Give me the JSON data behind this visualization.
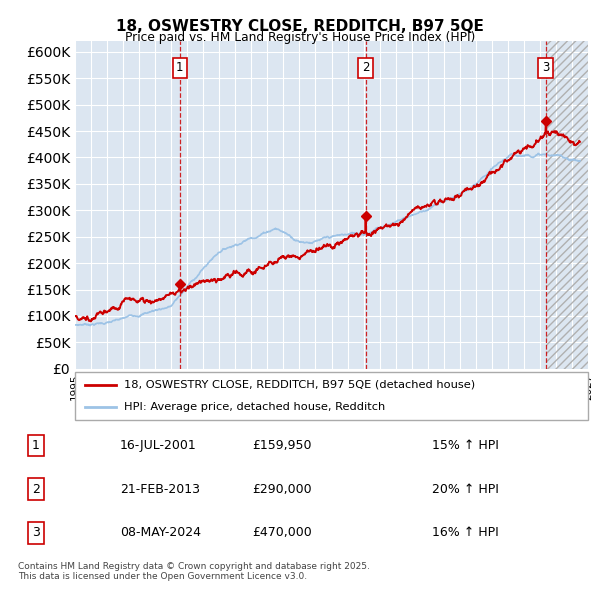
{
  "title": "18, OSWESTRY CLOSE, REDDITCH, B97 5QE",
  "subtitle": "Price paid vs. HM Land Registry's House Price Index (HPI)",
  "ylim": [
    0,
    620000
  ],
  "yticks": [
    0,
    50000,
    100000,
    150000,
    200000,
    250000,
    300000,
    350000,
    400000,
    450000,
    500000,
    550000,
    600000
  ],
  "xlim_start": 1995.0,
  "xlim_end": 2027.0,
  "background_color": "#ffffff",
  "plot_bg_color": "#dce6f1",
  "grid_color": "#ffffff",
  "red_line_color": "#cc0000",
  "blue_line_color": "#9dc3e6",
  "sale_dates": [
    2001.54,
    2013.13,
    2024.36
  ],
  "sale_prices": [
    159950,
    290000,
    470000
  ],
  "sale_labels": [
    "1",
    "2",
    "3"
  ],
  "legend_items": [
    {
      "label": "18, OSWESTRY CLOSE, REDDITCH, B97 5QE (detached house)",
      "color": "#cc0000"
    },
    {
      "label": "HPI: Average price, detached house, Redditch",
      "color": "#9dc3e6"
    }
  ],
  "table_rows": [
    {
      "num": "1",
      "date": "16-JUL-2001",
      "price": "£159,950",
      "hpi": "15% ↑ HPI"
    },
    {
      "num": "2",
      "date": "21-FEB-2013",
      "price": "£290,000",
      "hpi": "20% ↑ HPI"
    },
    {
      "num": "3",
      "date": "08-MAY-2024",
      "price": "£470,000",
      "hpi": "16% ↑ HPI"
    }
  ],
  "footnote": "Contains HM Land Registry data © Crown copyright and database right 2025.\nThis data is licensed under the Open Government Licence v3.0.",
  "hatch_start": 2024.36,
  "hatch_end": 2027.0
}
